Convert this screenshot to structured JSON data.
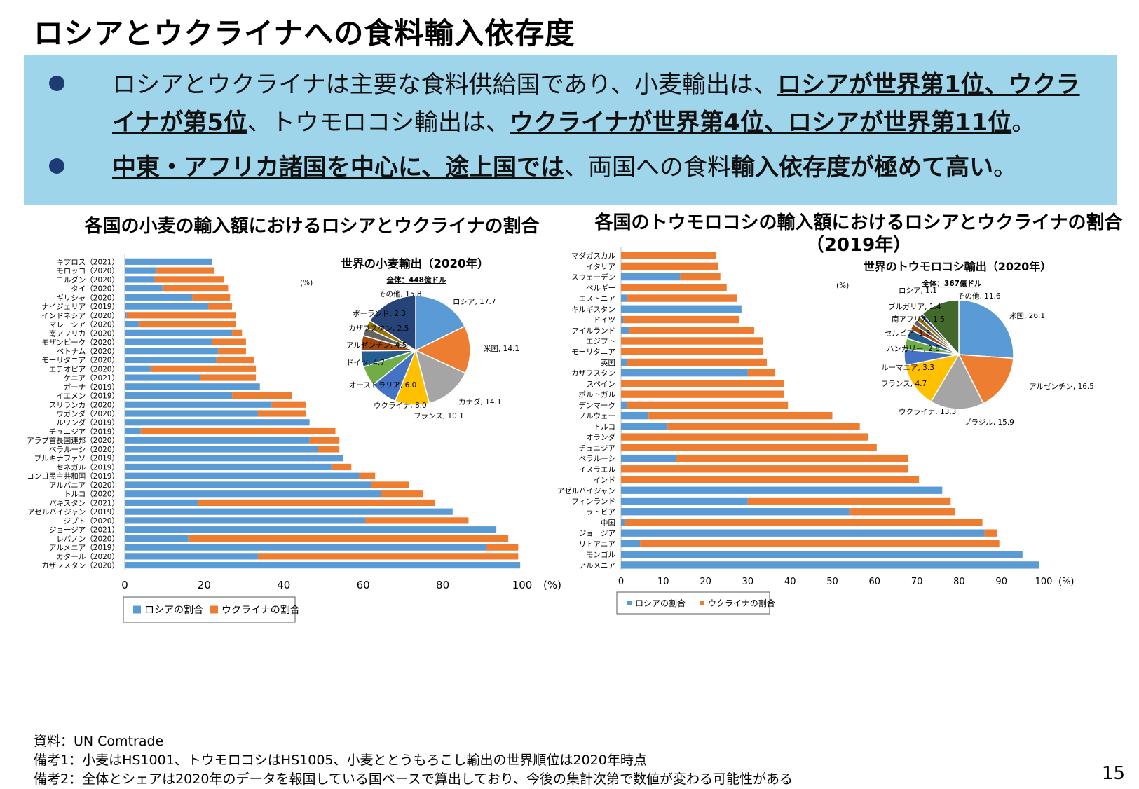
{
  "page": {
    "title": "ロシアとウクライナへの食料輸入依存度",
    "bullet1": {
      "t1": "ロシアとウクライナは主要な食料供給国であり、小麦輸出は、",
      "b1": "ロシアが世界第1位、ウクライナが第5位",
      "t2": "、トウモロコシ輸出は、",
      "b2": "ウクライナが世界第4位、ロシアが世界第11位",
      "t3": "。"
    },
    "bullet2": {
      "b1": "中東・アフリカ諸国を中心に、途上国では",
      "t1": "、両国への食料",
      "b2": "輸入依存度が極めて高い",
      "t2": "。"
    },
    "notes": [
      "資料：UN Comtrade",
      "備考1：小麦はHS1001、トウモロコシはHS1005、小麦ととうもろこし輸出の世界順位は2020年時点",
      "備考2：全体とシェアは2020年のデータを報国している国ベースで算出しており、今後の集計次第で数値が変わる可能性がある"
    ],
    "page_number": "15"
  },
  "colors": {
    "russia": "#5b9bd5",
    "ukraine": "#ed7d31"
  },
  "chart_data": [
    {
      "type": "bar",
      "orientation": "horizontal",
      "stacked": true,
      "title": "各国の小麦の輸入額におけるロシアとウクライナの割合",
      "unit": "(%)",
      "xlim": [
        0,
        100
      ],
      "xticks": [
        0,
        20,
        40,
        60,
        80,
        100
      ],
      "categories": [
        "キプロス（2021）",
        "モロッコ（2020）",
        "ヨルダン（2020）",
        "タイ（2020）",
        "ギリシャ（2020）",
        "ナイジェリア（2019）",
        "インドネシア（2020）",
        "マレーシア（2020）",
        "南アフリカ（2020）",
        "モザンビーク（2020）",
        "ベトナム（2020）",
        "モーリタニア（2020）",
        "エチオピア（2020）",
        "ケニア（2021）",
        "ガーナ（2019）",
        "イエメン（2019）",
        "スリランカ（2020）",
        "ウガンダ（2020）",
        "ルワンダ（2019）",
        "チュニジア（2019）",
        "アラブ首長国連邦（2020）",
        "ベラルーシ（2020）",
        "ブルキナファソ（2019）",
        "セネガル（2019）",
        "コンゴ民主共和国（2019）",
        "アルバニア（2020）",
        "トルコ（2020）",
        "パキスタン（2021）",
        "アゼルバイジャン（2019）",
        "エジプト（2020）",
        "ジョージア（2021）",
        "レバノン（2020）",
        "アルメニア（2019）",
        "カタール（2020）",
        "カザフスタン（2020）"
      ],
      "series": [
        {
          "name": "ロシアの割合",
          "values": [
            22,
            8,
            7.5,
            9.5,
            17,
            21,
            0.5,
            3.5,
            27,
            22,
            23.5,
            23,
            6.5,
            19,
            34,
            27,
            37,
            33.5,
            46.5,
            4,
            46.5,
            48.5,
            55,
            52,
            59,
            62,
            64.5,
            18.5,
            82.5,
            60.5,
            93.5,
            16,
            91,
            33.5,
            99.5
          ]
        },
        {
          "name": "ウクライナの割合",
          "values": [
            0,
            14.5,
            17.5,
            16.5,
            9.5,
            6,
            27.5,
            24.5,
            2.5,
            8.5,
            7,
            9.5,
            26.5,
            14,
            0,
            15,
            8.5,
            12,
            0,
            49,
            7.5,
            5.5,
            0,
            5,
            4,
            9.5,
            10.5,
            59.5,
            0,
            26,
            0,
            80.5,
            8,
            65.5,
            0
          ]
        }
      ],
      "inset": {
        "type": "pie",
        "title": "世界の小麦輸出（2020年）",
        "unit": "(%)",
        "total": "全体：448億ドル",
        "labels": [
          "ロシア",
          "米国",
          "カナダ",
          "フランス",
          "ウクライナ",
          "オーストラリア",
          "ドイツ",
          "アルゼンチン",
          "カザフスタン",
          "ポーランド",
          "その他"
        ],
        "values": [
          17.7,
          14.1,
          14.1,
          10.1,
          8.0,
          6.0,
          4.7,
          4.5,
          2.5,
          2.3,
          15.8
        ],
        "label_texts": [
          "ロシア, 17.7",
          "米国, 14.1",
          "カナダ, 14.1",
          "フランス, 10.1",
          "ウクライナ, 8.0",
          "オーストラリア, 6.0",
          "ドイツ, 4.7",
          "アルゼンチン, 4.5",
          "カザフスタン, 2.5",
          "ポーランド, 2.3",
          "その他, 15.8"
        ],
        "colors": [
          "#5b9bd5",
          "#ed7d31",
          "#a5a5a5",
          "#ffc000",
          "#4472c4",
          "#70ad47",
          "#255e91",
          "#9e480e",
          "#636363",
          "#997300",
          "#264478"
        ]
      }
    },
    {
      "type": "bar",
      "orientation": "horizontal",
      "stacked": true,
      "title": "各国のトウモロコシの輸入額におけるロシアとウクライナの割合",
      "subtitle": "（2019年）",
      "unit": "(%)",
      "xlim": [
        0,
        100
      ],
      "xticks": [
        0,
        10,
        20,
        30,
        40,
        50,
        60,
        70,
        80,
        90,
        100
      ],
      "categories": [
        "マダガスカル",
        "イタリア",
        "スウェーデン",
        "ベルギー",
        "エストニア",
        "キルギスタン",
        "ドイツ",
        "アイルランド",
        "エジプト",
        "モーリタニア",
        "英国",
        "カザフスタン",
        "スペイン",
        "ポルトガル",
        "デンマーク",
        "ノルウェー",
        "トルコ",
        "オランダ",
        "チュニジア",
        "ベラルーシ",
        "イスラエル",
        "インド",
        "アゼルバイジャン",
        "フィンランド",
        "ラトビア",
        "中国",
        "ジョージア",
        "リトアニア",
        "モンゴル",
        "アルメニア"
      ],
      "series": [
        {
          "name": "ロシアの割合",
          "values": [
            0,
            0,
            14,
            0,
            1.5,
            28.5,
            0.5,
            2,
            0,
            0,
            1.5,
            30,
            0,
            0,
            1.5,
            6.5,
            11,
            0,
            0,
            13,
            0,
            0,
            76,
            30,
            54,
            1,
            86,
            4.5,
            95,
            99
          ]
        },
        {
          "name": "ウクライナの割合",
          "values": [
            22.5,
            23,
            9.5,
            25,
            26,
            0,
            27.5,
            29.5,
            33.5,
            33.5,
            33,
            6.5,
            38.5,
            38.5,
            38,
            43.5,
            45.5,
            58.5,
            60.5,
            55,
            68,
            70.5,
            0,
            48,
            25,
            84.5,
            3,
            85,
            0,
            0
          ]
        }
      ],
      "inset": {
        "type": "pie",
        "title": "世界のトウモロコシ輸出（2020年）",
        "unit": "(%)",
        "total": "全体：367億ドル",
        "labels": [
          "米国",
          "アルゼンチン",
          "ブラジル",
          "ウクライナ",
          "フランス",
          "ルーマニア",
          "ハンガリー",
          "セルビア",
          "南アフリカ",
          "ブルガリア",
          "ロシア",
          "その他"
        ],
        "values": [
          26.1,
          16.5,
          15.9,
          13.3,
          4.7,
          3.3,
          2.8,
          1.8,
          1.5,
          1.4,
          1.1,
          11.6
        ],
        "label_texts": [
          "米国, 26.1",
          "アルゼンチン, 16.5",
          "ブラジル, 15.9",
          "ウクライナ, 13.3",
          "フランス, 4.7",
          "ルーマニア, 3.3",
          "ハンガリー, 2.8",
          "セルビア, 1.8",
          "南アフリカ, 1.5",
          "ブルガリア, 1.4",
          "ロシア, 1.1",
          "その他, 11.6"
        ],
        "colors": [
          "#5b9bd5",
          "#ed7d31",
          "#a5a5a5",
          "#ffc000",
          "#4472c4",
          "#70ad47",
          "#255e91",
          "#9e480e",
          "#636363",
          "#997300",
          "#264478",
          "#43682b"
        ]
      }
    }
  ]
}
